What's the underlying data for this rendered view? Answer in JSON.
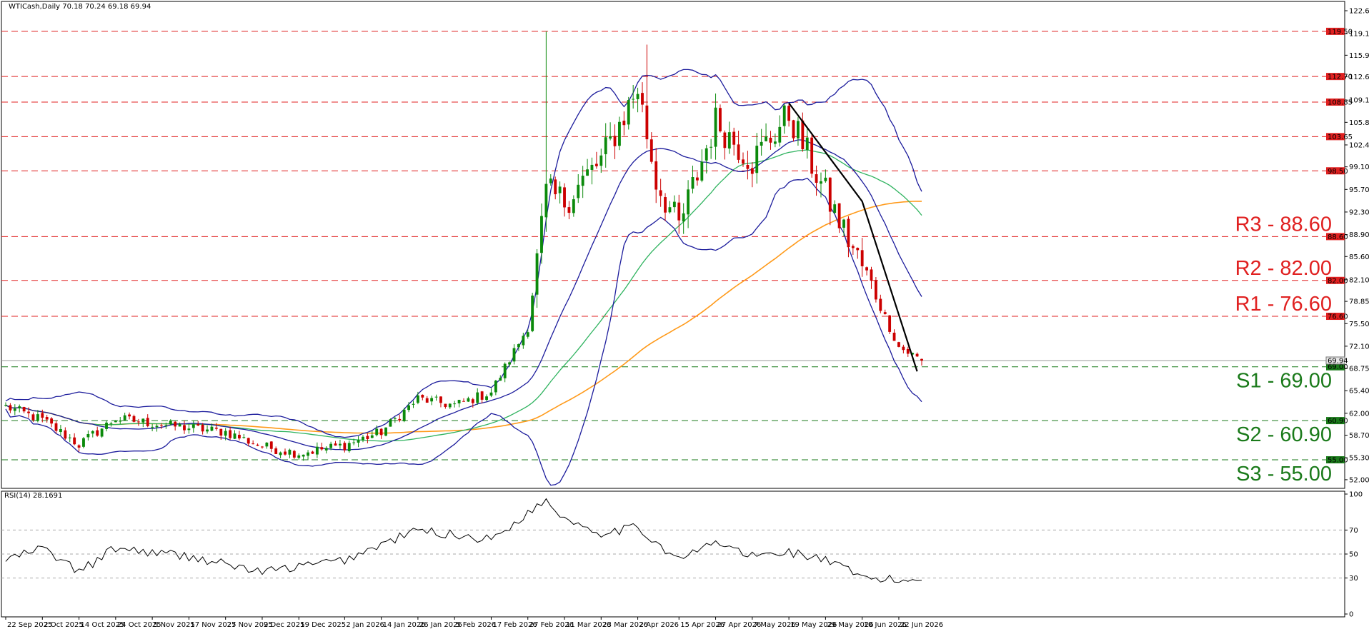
{
  "header": {
    "symbol_line": "WTICash,Daily  70.18 70.24 69.18 69.94"
  },
  "rsi_header": "RSI(14) 28.1691",
  "colors": {
    "candle_up": "#0b8a0b",
    "candle_down": "#cc0000",
    "bollinger": "#1c1c9c",
    "ma_100": "#2fb35f",
    "ma_200": "#ff9a1a",
    "resistance_line": "#e02020",
    "support_line": "#1a7a1a",
    "trendline": "#000000",
    "resistance_text": "#e02020",
    "support_text": "#1a7a1a",
    "rsi_line": "#000000"
  },
  "chart_data": {
    "type": "candlestick",
    "title": "WTICash,Daily",
    "ohlc_last": {
      "open": 70.18,
      "high": 70.24,
      "low": 69.18,
      "close": 69.94
    },
    "current_price_label": "69.94",
    "y_ticks": [
      "122.60",
      "119.15",
      "115.90",
      "112.65",
      "109.15",
      "105.80",
      "102.40",
      "99.10",
      "95.70",
      "92.30",
      "88.90",
      "85.60",
      "82.10",
      "78.85",
      "75.50",
      "72.10",
      "68.75",
      "65.40",
      "62.00",
      "58.70",
      "55.30",
      "52.00"
    ],
    "ylim": [
      50.7,
      124.0
    ],
    "x_labels": [
      "22 Sep 2025",
      "2 Oct 2025",
      "14 Oct 2025",
      "24 Oct 2025",
      "5 Nov 2025",
      "17 Nov 2025",
      "27 Nov 2025",
      "9 Dec 2025",
      "19 Dec 2025",
      "2 Jan 2026",
      "14 Jan 2026",
      "26 Jan 2026",
      "5 Feb 2026",
      "17 Feb 2026",
      "27 Feb 2026",
      "11 Mar 2026",
      "23 Mar 2026",
      "2 Apr 2026",
      "15 Apr 2026",
      "27 Apr 2026",
      "7 May 2026",
      "19 May 2026",
      "29 May 2026",
      "10 Jun 2026",
      "22 Jun 2026"
    ],
    "levels": [
      {
        "value": 119.5,
        "label": "119.50",
        "kind": "resistance"
      },
      {
        "value": 112.7,
        "label": "112.70",
        "kind": "resistance"
      },
      {
        "value": 108.85,
        "label": "108.85",
        "kind": "resistance"
      },
      {
        "value": 103.65,
        "label": "103.65",
        "kind": "resistance"
      },
      {
        "value": 98.5,
        "label": "98.50",
        "kind": "resistance"
      },
      {
        "value": 88.6,
        "label": "88.60",
        "kind": "resistance",
        "annotation": "R3 - 88.60"
      },
      {
        "value": 82.0,
        "label": "82.00",
        "kind": "resistance",
        "annotation": "R2 - 82.00"
      },
      {
        "value": 76.6,
        "label": "76.60",
        "kind": "resistance",
        "annotation": "R1 - 76.60"
      },
      {
        "value": 69.0,
        "label": "69.00",
        "kind": "support",
        "annotation": "S1 - 69.00"
      },
      {
        "value": 60.9,
        "label": "60.90",
        "kind": "support",
        "annotation": "S2 - 60.90"
      },
      {
        "value": 55.0,
        "label": "55.00",
        "kind": "support",
        "annotation": "S3 - 55.00"
      }
    ],
    "anchors": [
      {
        "date": "22 Sep 2025",
        "price": 63.0
      },
      {
        "date": "2 Oct 2025",
        "price": 61.0
      },
      {
        "date": "14 Oct 2025",
        "price": 57.3
      },
      {
        "date": "24 Oct 2025",
        "price": 61.2
      },
      {
        "date": "5 Nov 2025",
        "price": 60.5
      },
      {
        "date": "17 Nov 2025",
        "price": 59.8
      },
      {
        "date": "27 Nov 2025",
        "price": 59.2
      },
      {
        "date": "9 Dec 2025",
        "price": 57.0
      },
      {
        "date": "19 Dec 2025",
        "price": 56.0
      },
      {
        "date": "2 Jan 2026",
        "price": 57.2
      },
      {
        "date": "14 Jan 2026",
        "price": 59.2
      },
      {
        "date": "26 Jan 2026",
        "price": 64.2
      },
      {
        "date": "5 Feb 2026",
        "price": 63.2
      },
      {
        "date": "17 Feb 2026",
        "price": 65.2
      },
      {
        "date": "27 Feb 2026",
        "price": 75.0
      },
      {
        "date": "5 Mar 2026",
        "price": 95.0
      },
      {
        "date": "11 Mar 2026",
        "price": 94.0
      },
      {
        "date": "23 Mar 2026",
        "price": 100.0
      },
      {
        "date": "2 Apr 2026",
        "price": 111.0
      },
      {
        "date": "8 Apr 2026",
        "price": 97.0
      },
      {
        "date": "15 Apr 2026",
        "price": 90.0
      },
      {
        "date": "27 Apr 2026",
        "price": 106.0
      },
      {
        "date": "7 May 2026",
        "price": 100.0
      },
      {
        "date": "19 May 2026",
        "price": 107.0
      },
      {
        "date": "29 May 2026",
        "price": 95.0
      },
      {
        "date": "10 Jun 2026",
        "price": 84.0
      },
      {
        "date": "22 Jun 2026",
        "price": 72.0
      },
      {
        "date": "29 Jun 2026",
        "price": 69.94
      }
    ],
    "trendline": [
      {
        "date": "19 May 2026",
        "price": 108.7
      },
      {
        "date": "10 Jun 2026",
        "price": 93.9
      },
      {
        "date": "26 Jun 2026",
        "price": 68.3
      }
    ],
    "rsi": {
      "label": "RSI(14)",
      "value": 28.1691,
      "ylim": [
        0,
        100
      ],
      "ticks": [
        "100",
        "70",
        "50",
        "30",
        "0"
      ],
      "anchors": [
        {
          "date": "22 Sep 2025",
          "value": 45
        },
        {
          "date": "2 Oct 2025",
          "value": 55
        },
        {
          "date": "14 Oct 2025",
          "value": 35
        },
        {
          "date": "24 Oct 2025",
          "value": 55
        },
        {
          "date": "17 Nov 2025",
          "value": 48
        },
        {
          "date": "9 Dec 2025",
          "value": 35
        },
        {
          "date": "2 Jan 2026",
          "value": 45
        },
        {
          "date": "14 Jan 2026",
          "value": 58
        },
        {
          "date": "26 Jan 2026",
          "value": 70
        },
        {
          "date": "17 Feb 2026",
          "value": 62
        },
        {
          "date": "5 Mar 2026",
          "value": 95
        },
        {
          "date": "11 Mar 2026",
          "value": 80
        },
        {
          "date": "23 Mar 2026",
          "value": 68
        },
        {
          "date": "2 Apr 2026",
          "value": 72
        },
        {
          "date": "15 Apr 2026",
          "value": 45
        },
        {
          "date": "27 Apr 2026",
          "value": 60
        },
        {
          "date": "7 May 2026",
          "value": 48
        },
        {
          "date": "19 May 2026",
          "value": 52
        },
        {
          "date": "29 May 2026",
          "value": 45
        },
        {
          "date": "10 Jun 2026",
          "value": 30
        },
        {
          "date": "22 Jun 2026",
          "value": 28
        },
        {
          "date": "29 Jun 2026",
          "value": 28.17
        }
      ]
    }
  }
}
